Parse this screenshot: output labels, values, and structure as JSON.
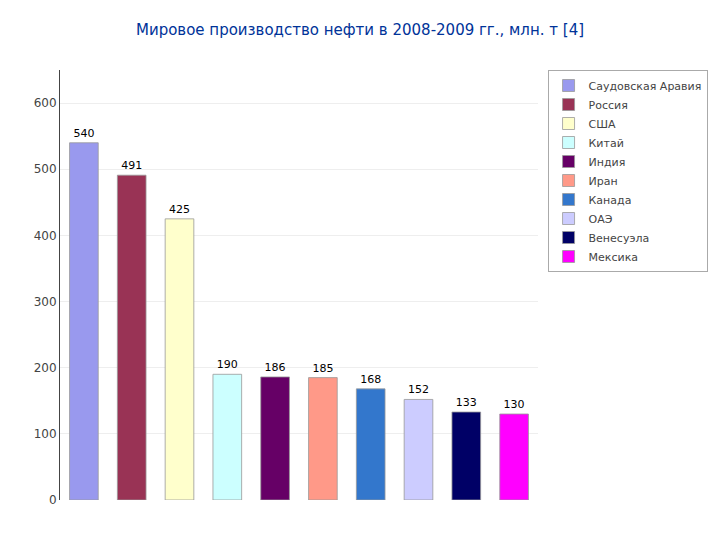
{
  "chart_data": {
    "type": "bar",
    "title": "Мировое производство нефти в 2008-2009 гг., млн. т [4]",
    "categories": [
      "Саудовская Аравия",
      "Россия",
      "США",
      "Китай",
      "Индия",
      "Иран",
      "Канада",
      "ОАЭ",
      "Венесуэла",
      "Мексика"
    ],
    "values": [
      540,
      491,
      425,
      190,
      186,
      185,
      168,
      152,
      133,
      130
    ],
    "colors": [
      "#9999EE",
      "#993355",
      "#FFFFCC",
      "#CCFFFF",
      "#660066",
      "#FF9988",
      "#3377CC",
      "#CCCCFF",
      "#000066",
      "#FF00FF"
    ],
    "ylim": [
      0,
      650
    ],
    "yticks": [
      0,
      100,
      200,
      300,
      400,
      500,
      600
    ],
    "grid": true,
    "legend": "upper right",
    "data_labels": true,
    "tick_labels": "y"
  }
}
